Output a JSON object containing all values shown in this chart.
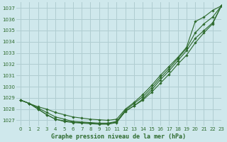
{
  "title": "Graphe pression niveau de la mer (hPa)",
  "background_color": "#cfe8ec",
  "line_color": "#2d6a2d",
  "grid_color": "#b0cdd1",
  "xlim": [
    -0.5,
    23
  ],
  "ylim": [
    1026.5,
    1037.5
  ],
  "yticks": [
    1027,
    1028,
    1029,
    1030,
    1031,
    1032,
    1033,
    1034,
    1035,
    1036,
    1037
  ],
  "xticks": [
    0,
    1,
    2,
    3,
    4,
    5,
    6,
    7,
    8,
    9,
    10,
    11,
    12,
    13,
    14,
    15,
    16,
    17,
    18,
    19,
    20,
    21,
    22,
    23
  ],
  "series": [
    [
      1028.8,
      1028.5,
      1028.2,
      1028.0,
      1027.7,
      1027.5,
      1027.3,
      1027.2,
      1027.1,
      1027.05,
      1027.0,
      1027.1,
      1028.0,
      1028.6,
      1029.3,
      1030.1,
      1031.0,
      1031.8,
      1032.6,
      1033.5,
      1035.8,
      1036.2,
      1036.8,
      1037.2
    ],
    [
      1028.8,
      1028.5,
      1028.1,
      1027.7,
      1027.3,
      1027.1,
      1026.9,
      1026.85,
      1026.8,
      1026.75,
      1026.75,
      1026.9,
      1027.9,
      1028.5,
      1029.1,
      1029.9,
      1030.8,
      1031.6,
      1032.5,
      1033.4,
      1034.8,
      1035.6,
      1036.2,
      1037.2
    ],
    [
      1028.8,
      1028.5,
      1028.0,
      1027.5,
      1027.1,
      1026.9,
      1026.8,
      1026.75,
      1026.7,
      1026.65,
      1026.65,
      1026.8,
      1027.8,
      1028.3,
      1028.9,
      1029.7,
      1030.6,
      1031.4,
      1032.3,
      1033.2,
      1034.3,
      1035.0,
      1035.7,
      1037.2
    ],
    [
      1028.8,
      1028.5,
      1028.0,
      1027.5,
      1027.1,
      1026.95,
      1026.85,
      1026.8,
      1026.75,
      1026.7,
      1026.7,
      1026.85,
      1027.8,
      1028.3,
      1028.8,
      1029.5,
      1030.3,
      1031.1,
      1032.0,
      1032.8,
      1033.9,
      1034.8,
      1035.6,
      1037.2
    ]
  ]
}
